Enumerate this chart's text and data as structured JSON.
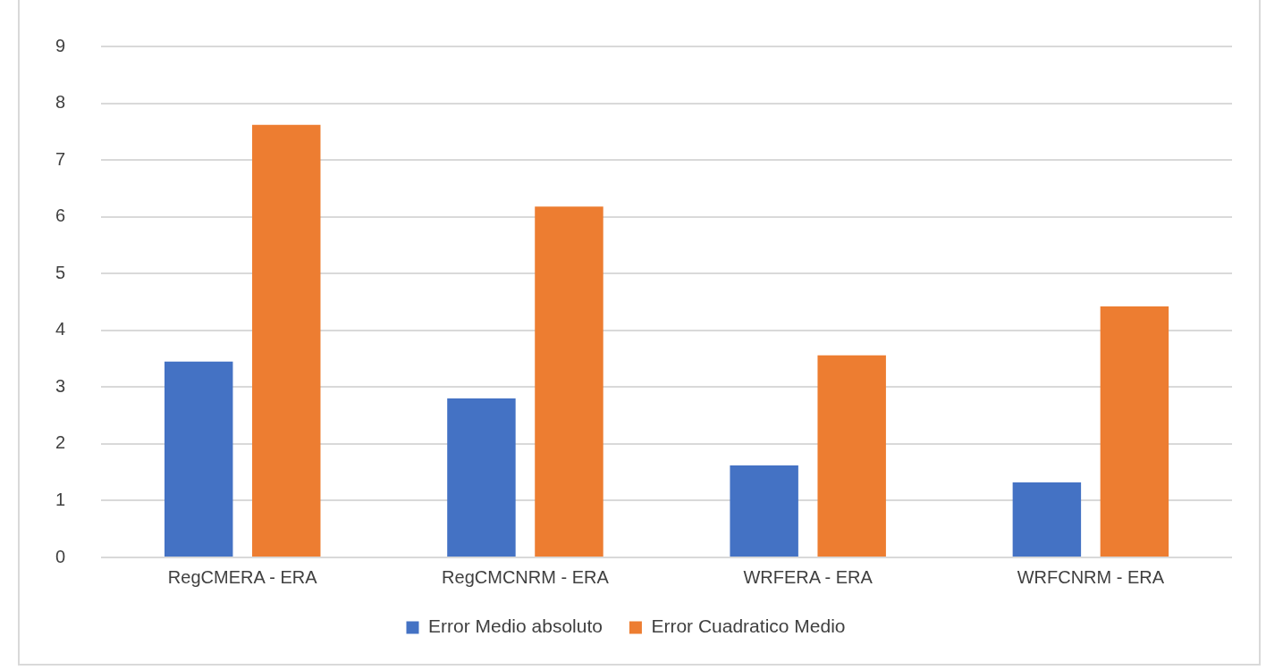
{
  "chart_data": {
    "type": "bar",
    "categories": [
      "RegCMERA - ERA",
      "RegCMCNRM - ERA",
      "WRFERA - ERA",
      "WRFCNRM - ERA"
    ],
    "series": [
      {
        "name": "Error Medio absoluto",
        "color": "#4472c4",
        "values": [
          3.45,
          2.8,
          1.62,
          1.32
        ]
      },
      {
        "name": "Error Cuadratico Medio",
        "color": "#ed7d31",
        "values": [
          7.62,
          6.18,
          3.56,
          4.42
        ]
      }
    ],
    "ylim": [
      0,
      9
    ],
    "yticks": [
      0,
      1,
      2,
      3,
      4,
      5,
      6,
      7,
      8,
      9
    ],
    "grid": "y",
    "legend": "bottom"
  }
}
